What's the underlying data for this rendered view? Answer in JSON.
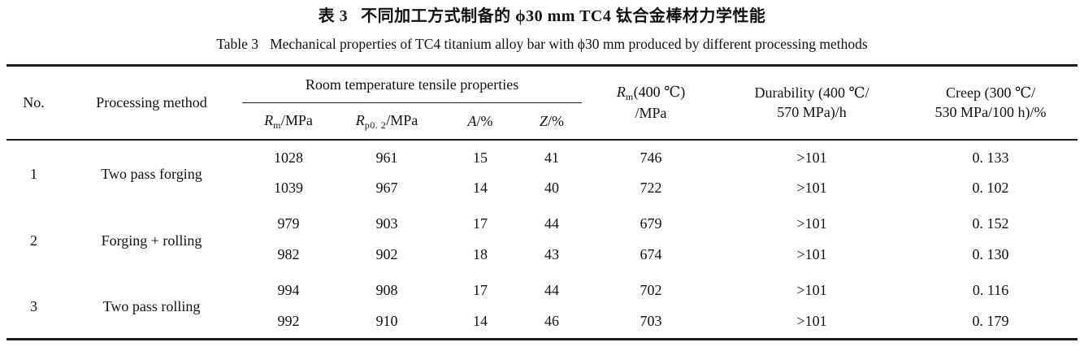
{
  "titles": {
    "zh": {
      "label": "表 3",
      "text": "不同加工方式制备的 ϕ30 mm TC4 钛合金棒材力学性能"
    },
    "en": {
      "label": "Table 3",
      "text": "Mechanical properties of TC4 titanium alloy bar with ϕ30 mm produced by different processing methods"
    }
  },
  "colors": {
    "rule": "#1c1c1c",
    "text": "#111111",
    "background": "#ffffff"
  },
  "table": {
    "headers": {
      "no": "No.",
      "method": "Processing method",
      "tensile_group": "Room temperature tensile properties",
      "rm": {
        "sym": "R",
        "sub": "m",
        "rest": "/MPa"
      },
      "rp02": {
        "sym": "R",
        "sub": "p0. 2",
        "rest": "/MPa"
      },
      "a": {
        "sym": "A",
        "rest": "/%"
      },
      "z": {
        "sym": "Z",
        "rest": "/%"
      },
      "rm400": {
        "sym": "R",
        "sub": "m",
        "rest": "(400 ℃)",
        "line2": "/MPa"
      },
      "durability": {
        "line1": "Durability (400 ℃/",
        "line2": "570 MPa)/h"
      },
      "creep": {
        "line1": "Creep (300 ℃/",
        "line2": "530 MPa/100 h)/%"
      }
    },
    "groups": [
      {
        "no": "1",
        "method": "Two pass forging",
        "rows": [
          [
            "1028",
            "961",
            "15",
            "41",
            "746",
            ">101",
            "0. 133"
          ],
          [
            "1039",
            "967",
            "14",
            "40",
            "722",
            ">101",
            "0. 102"
          ]
        ]
      },
      {
        "no": "2",
        "method": "Forging + rolling",
        "rows": [
          [
            "979",
            "903",
            "17",
            "44",
            "679",
            ">101",
            "0. 152"
          ],
          [
            "982",
            "902",
            "18",
            "43",
            "674",
            ">101",
            "0. 130"
          ]
        ]
      },
      {
        "no": "3",
        "method": "Two pass rolling",
        "rows": [
          [
            "994",
            "908",
            "17",
            "44",
            "702",
            ">101",
            "0. 116"
          ],
          [
            "992",
            "910",
            "14",
            "46",
            "703",
            ">101",
            "0. 179"
          ]
        ]
      }
    ]
  }
}
